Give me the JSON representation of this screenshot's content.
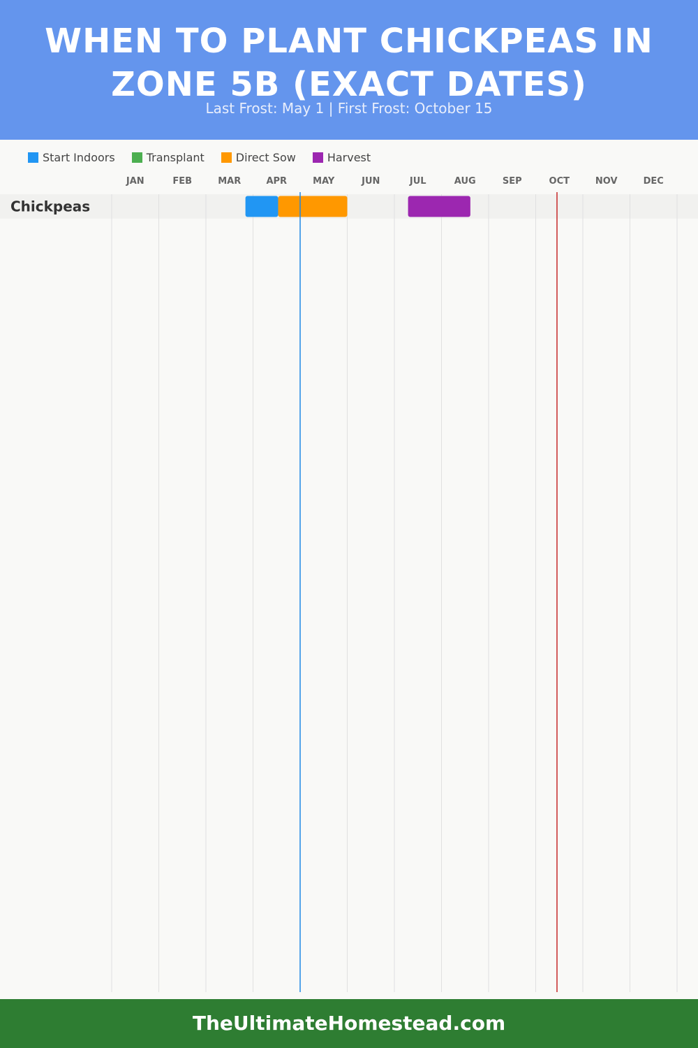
{
  "header": {
    "title": "WHEN TO PLANT CHICKPEAS IN ZONE 5B (EXACT DATES)",
    "subtitle": "Last Frost: May 1 | First Frost: October 15"
  },
  "legend": [
    {
      "label": "Start Indoors",
      "color": "#2196f3"
    },
    {
      "label": "Transplant",
      "color": "#4caf50"
    },
    {
      "label": "Direct Sow",
      "color": "#ff9800"
    },
    {
      "label": "Harvest",
      "color": "#9c27b0"
    }
  ],
  "chart_data": {
    "type": "gantt",
    "months": [
      "JAN",
      "FEB",
      "MAR",
      "APR",
      "MAY",
      "JUN",
      "JUL",
      "AUG",
      "SEP",
      "OCT",
      "NOV",
      "DEC"
    ],
    "crops": [
      {
        "name": "Chickpeas",
        "periods": [
          {
            "activity": "Start Indoors",
            "start": "Mar 27",
            "end": "Apr 17",
            "color": "#2196f3"
          },
          {
            "activity": "Direct Sow",
            "start": "Apr 17",
            "end": "Jun 1",
            "color": "#ff9800"
          },
          {
            "activity": "Harvest",
            "start": "Jul 10",
            "end": "Aug 20",
            "color": "#9c27b0"
          }
        ]
      }
    ],
    "markers": [
      {
        "name": "Last Frost",
        "date": "May 1",
        "color": "#1e88e5"
      },
      {
        "name": "First Frost",
        "date": "Oct 15",
        "color": "#c62828"
      }
    ],
    "grid": true
  },
  "footer": {
    "site": "TheUltimateHomestead.com"
  }
}
